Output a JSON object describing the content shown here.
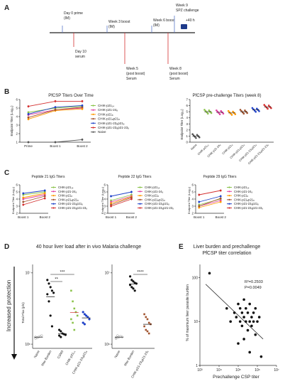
{
  "panel_labels": [
    "A",
    "B",
    "C",
    "D",
    "E"
  ],
  "timeline": {
    "events_top": [
      {
        "line1": "Day 0 prime",
        "line2": "(IM)"
      },
      {
        "line1": "Week 3 boost",
        "line2": "(IM)"
      },
      {
        "line1": "Week 6 boost",
        "line2": "(IM)"
      },
      {
        "line1": "Week 9",
        "line2": "SPZ challenge"
      }
    ],
    "plus40h": "+40 h",
    "events_bottom": [
      {
        "lines": [
          "Day 10",
          "serum"
        ]
      },
      {
        "lines": [
          "Week 5",
          "(post boost)",
          "Serum"
        ]
      },
      {
        "lines": [
          "Week 8",
          "(post boost)",
          "Serum"
        ]
      }
    ]
  },
  "legend_full": [
    "CHIK-p21₁₄",
    "CHIK-p21-24₈",
    "CHIK-p21₈",
    "CHIK-p21₈p21₈",
    "CHIK-p21-23₈p21₈",
    "CHIK-p21-23₈p21-23₈",
    "Naive"
  ],
  "legend_short": [
    "CHIK-p21₁₄",
    "CHIK-p21-24₈",
    "CHIK-p21₈",
    "CHIK-p21₈p21₈",
    "CHIK-p21-23₈p21₈",
    "CHIK-p21-23₈p21-23₈"
  ],
  "series_colors": [
    "#8bc34a",
    "#e040a0",
    "#ff9800",
    "#a0522d",
    "#1e40c8",
    "#d32f2f",
    "#555555"
  ],
  "chart_data": [
    {
      "type": "line",
      "title": "PfCSP Titers Over Time",
      "ylabel": "Endpoint Titer (Log₁₀)",
      "categories": [
        "Prime",
        "Boost 1",
        "Boost 2"
      ],
      "ylim": [
        1,
        6
      ],
      "yticks": [
        "1",
        "2",
        "3",
        "4",
        "5",
        "6"
      ],
      "series": [
        {
          "name": "CHIK-p21₁₄",
          "values": [
            4.5,
            5.0,
            5.2
          ]
        },
        {
          "name": "CHIK-p21-24₈",
          "values": [
            4.2,
            4.8,
            5.0
          ]
        },
        {
          "name": "CHIK-p21₈",
          "values": [
            3.7,
            4.7,
            4.9
          ]
        },
        {
          "name": "CHIK-p21₈p21₈",
          "values": [
            3.9,
            4.8,
            5.1
          ]
        },
        {
          "name": "CHIK-p21-23₈p21₈",
          "values": [
            4.3,
            5.1,
            5.3
          ]
        },
        {
          "name": "CHIK-p21-23₈p21-23₈",
          "values": [
            5.2,
            5.8,
            5.8
          ]
        },
        {
          "name": "Naive",
          "values": [
            1.0,
            1.0,
            1.3
          ]
        }
      ]
    },
    {
      "type": "scatter",
      "title": "PfCSP pre-challenge Titers (week 8)",
      "ylabel": "Endpoint Titer (Log₁₀)",
      "categories": [
        "Naive",
        "CHIK-p21₁₄",
        "CHIK-p21-24₈",
        "CHIK-p21₈",
        "CHIK-p21₈p21₈",
        "CHIK-p21-23₈p21₈",
        "CHIK-p21-23₈p21-23₈"
      ],
      "ylim": [
        0,
        7
      ],
      "yticks": [
        "0",
        "1",
        "2",
        "3",
        "4",
        "5",
        "6",
        "7"
      ],
      "values": [
        1.0,
        5.0,
        4.9,
        4.8,
        5.0,
        5.3,
        5.8
      ]
    },
    {
      "type": "line",
      "title": "Peptide 21 IgG Titers",
      "ylabel": "Endpoint Titer (Log₁₀)",
      "categories": [
        "Boost 1",
        "Boost 2"
      ],
      "ylim": [
        2,
        6
      ],
      "yticks": [
        "2",
        "3",
        "4",
        "5",
        "6"
      ],
      "series": [
        {
          "name": "CHIK-p21₁₄",
          "values": [
            4.6,
            5.0
          ]
        },
        {
          "name": "CHIK-p21-24₈",
          "values": [
            4.0,
            4.6
          ]
        },
        {
          "name": "CHIK-p21₈",
          "values": [
            4.2,
            4.8
          ]
        },
        {
          "name": "CHIK-p21₈p21₈",
          "values": [
            3.6,
            4.4
          ]
        },
        {
          "name": "CHIK-p21-23₈p21₈",
          "values": [
            4.8,
            5.2
          ]
        },
        {
          "name": "CHIK-p21-23₈p21-23₈",
          "values": [
            3.2,
            4.1
          ]
        }
      ]
    },
    {
      "type": "line",
      "title": "Peptide 22 IgG Titers",
      "ylabel": "Endpoint Titer (Log₁₀)",
      "categories": [
        "Boost 1",
        "Boost 2"
      ],
      "ylim": [
        2,
        6
      ],
      "yticks": [
        "2",
        "3",
        "4",
        "5",
        "6"
      ],
      "series": [
        {
          "name": "CHIK-p21₁₄",
          "values": [
            3.8,
            4.6
          ]
        },
        {
          "name": "CHIK-p21-24₈",
          "values": [
            3.6,
            4.4
          ]
        },
        {
          "name": "CHIK-p21₈",
          "values": [
            3.4,
            4.3
          ]
        },
        {
          "name": "CHIK-p21₈p21₈",
          "values": [
            3.2,
            4.2
          ]
        },
        {
          "name": "CHIK-p21-23₈p21₈",
          "values": [
            4.4,
            5.0
          ]
        },
        {
          "name": "CHIK-p21-23₈p21-23₈",
          "values": [
            3.0,
            4.0
          ]
        }
      ]
    },
    {
      "type": "line",
      "title": "Peptide 29 IgG Titers",
      "ylabel": "Endpoint Titer (Log₁₀)",
      "categories": [
        "Boost 1",
        "Boost 2"
      ],
      "ylim": [
        2,
        6
      ],
      "yticks": [
        "2",
        "3",
        "4",
        "5",
        "6"
      ],
      "series": [
        {
          "name": "CHIK-p21₁₄",
          "values": [
            3.2,
            4.0
          ]
        },
        {
          "name": "CHIK-p21-24₈",
          "values": [
            3.0,
            3.8
          ]
        },
        {
          "name": "CHIK-p21₈",
          "values": [
            2.8,
            3.6
          ]
        },
        {
          "name": "CHIK-p21₈p21₈",
          "values": [
            3.0,
            4.1
          ]
        },
        {
          "name": "CHIK-p21-23₈p21₈",
          "values": [
            3.6,
            4.4
          ]
        },
        {
          "name": "CHIK-p21-23₈p21-23₈",
          "values": [
            4.6,
            5.2
          ]
        }
      ]
    },
    {
      "type": "scatter",
      "title": "40 hour liver load after in vivo Malaria challenge",
      "ylabel": "Total Flux (p/s)",
      "categories": [
        "Naive",
        "Max Burden",
        "CSM3",
        "CHIK-p21₁₄",
        "CHIK-p21-23₈p21₈"
      ],
      "ylim_log": [
        6,
        7
      ],
      "yticks": [
        "10⁶",
        "10⁷"
      ],
      "group_colors": [
        "#999999",
        "#111111",
        "#111111",
        "#8bc34a",
        "#1e40c8"
      ],
      "points": [
        [
          6.08,
          6.09,
          6.1,
          6.11,
          6.12,
          6.1,
          6.09
        ],
        [
          6.9,
          6.85,
          6.8,
          6.75,
          6.72,
          6.7,
          6.6,
          6.4,
          6.25
        ],
        [
          6.2,
          6.18,
          6.15,
          6.14,
          6.13,
          6.12,
          6.1
        ],
        [
          6.75,
          6.6,
          6.5,
          6.45,
          6.4,
          6.35,
          6.3,
          6.2
        ],
        [
          6.45,
          6.42,
          6.4,
          6.38,
          6.35,
          6.3,
          6.28
        ]
      ],
      "significance": [
        "***",
        "**"
      ]
    },
    {
      "type": "scatter",
      "ylabel": "",
      "categories": [
        "Naive",
        "Max Burden",
        "CHIK-p21-23₈p21-23₈"
      ],
      "ylim_log": [
        6,
        7
      ],
      "yticks": [
        "10⁶",
        "10⁷"
      ],
      "group_colors": [
        "#999999",
        "#111111",
        "#a0522d"
      ],
      "points": [
        [
          6.08,
          6.09,
          6.1,
          6.11,
          6.1,
          6.09,
          6.12
        ],
        [
          6.95,
          6.9,
          6.88,
          6.86,
          6.85,
          6.83,
          6.8,
          6.78,
          6.75
        ],
        [
          6.42,
          6.38,
          6.35,
          6.3,
          6.28,
          6.25,
          6.2,
          6.18,
          6.15
        ]
      ],
      "significance": [
        "****"
      ]
    },
    {
      "type": "scatter",
      "title": "Liver burden and prechallenge PfCSP titer correlation",
      "xlabel": "Prechallenge CSP titer",
      "ylabel": "% of maximum liver parasite burden",
      "xlim_log": [
        3,
        7
      ],
      "ylim_log": [
        0,
        2
      ],
      "xticks": [
        "10³",
        "10⁴",
        "10⁵",
        "10⁶",
        "10⁷"
      ],
      "yticks": [
        "1",
        "10",
        "100"
      ],
      "stats_line1": "R²=0.2503",
      "stats_line2": "P=0.0049",
      "x_log": [
        3.5,
        4.4,
        4.6,
        4.8,
        4.9,
        5.0,
        5.1,
        5.1,
        5.2,
        5.2,
        5.3,
        5.3,
        5.4,
        5.4,
        5.5,
        5.5,
        5.6,
        5.6,
        5.7,
        5.7,
        5.8,
        5.8,
        5.9,
        5.9,
        6.0,
        6.1,
        6.2,
        5.6,
        5.3,
        5.0
      ],
      "y_log": [
        2.1,
        1.3,
        1.0,
        1.2,
        1.1,
        1.4,
        1.0,
        1.3,
        1.2,
        0.9,
        1.1,
        1.5,
        1.0,
        1.3,
        1.2,
        0.8,
        1.0,
        1.4,
        1.1,
        0.9,
        1.2,
        1.0,
        0.7,
        1.3,
        1.0,
        1.1,
        0.2,
        0.3,
        0.6,
        0.5
      ]
    }
  ],
  "panel_d_side_label": "Increased protection",
  "panel_e_title_line1": "Liver burden and prechallenge",
  "panel_e_title_line2": "PfCSP titer correlation"
}
